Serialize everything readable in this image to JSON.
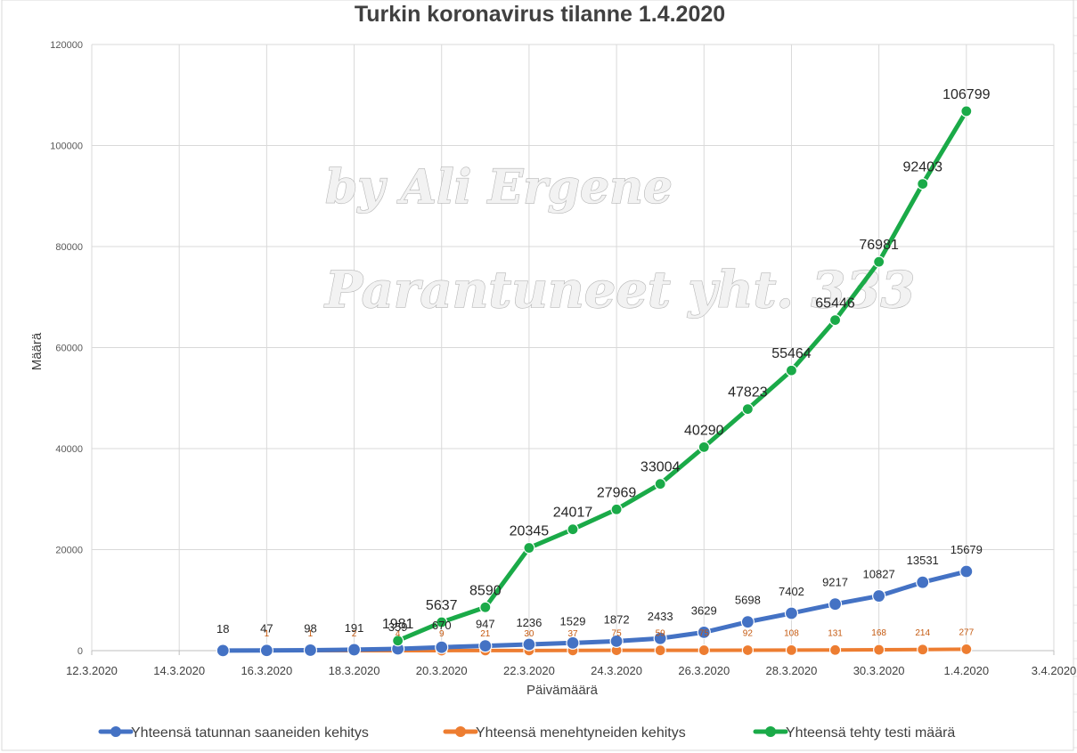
{
  "colors": {
    "confirmed": "#4472c4",
    "deaths": "#ed7d31",
    "tests": "#1aaa48",
    "gridline": "#d9d9d9"
  },
  "watermark": {
    "line1": "by Ali Ergene",
    "line2": "Parantuneet yht. 333"
  },
  "chart_data": {
    "type": "line",
    "title": "Turkin koronavirus tilanne 1.4.2020",
    "xlabel": "Päivämäärä",
    "ylabel": "Määrä",
    "ylim": [
      0,
      120000
    ],
    "yticks": [
      "0",
      "20000",
      "40000",
      "60000",
      "80000",
      "100000",
      "120000"
    ],
    "xticks": [
      "12.3.2020",
      "14.3.2020",
      "16.3.2020",
      "18.3.2020",
      "20.3.2020",
      "22.3.2020",
      "24.3.2020",
      "26.3.2020",
      "28.3.2020",
      "30.3.2020",
      "1.4.2020",
      "3.4.2020"
    ],
    "xlim": [
      "12.3.2020",
      "3.4.2020"
    ],
    "grid": true,
    "legend_position": "bottom",
    "series": [
      {
        "name": "Yhteensä tatunnan saaneiden kehitys",
        "color": "#4472c4",
        "x": [
          "15.3.2020",
          "16.3.2020",
          "17.3.2020",
          "18.3.2020",
          "19.3.2020",
          "20.3.2020",
          "21.3.2020",
          "22.3.2020",
          "23.3.2020",
          "24.3.2020",
          "25.3.2020",
          "26.3.2020",
          "27.3.2020",
          "28.3.2020",
          "29.3.2020",
          "30.3.2020",
          "31.3.2020",
          "1.4.2020"
        ],
        "values": [
          18,
          47,
          98,
          191,
          359,
          670,
          947,
          1236,
          1529,
          1872,
          2433,
          3629,
          5698,
          7402,
          9217,
          10827,
          13531,
          15679
        ],
        "labels": [
          "18",
          "47",
          "98",
          "191",
          "359",
          "670",
          "947",
          "1236",
          "1529",
          "1872",
          "2433",
          "3629",
          "5698",
          "7402",
          "9217",
          "10827",
          "13531",
          "15679"
        ]
      },
      {
        "name": "Yhteensä menehtyneiden kehitys",
        "color": "#ed7d31",
        "x": [
          "16.3.2020",
          "17.3.2020",
          "18.3.2020",
          "19.3.2020",
          "20.3.2020",
          "21.3.2020",
          "22.3.2020",
          "23.3.2020",
          "24.3.2020",
          "25.3.2020",
          "26.3.2020",
          "27.3.2020",
          "28.3.2020",
          "29.3.2020",
          "30.3.2020",
          "31.3.2020",
          "1.4.2020"
        ],
        "values": [
          1,
          1,
          2,
          4,
          9,
          21,
          30,
          37,
          75,
          59,
          75,
          92,
          108,
          131,
          168,
          214,
          277
        ],
        "labels": [
          "1",
          "1",
          "2",
          "4",
          "9",
          "21",
          "30",
          "37",
          "75",
          "59",
          "75",
          "92",
          "108",
          "131",
          "168",
          "214",
          "277"
        ]
      },
      {
        "name": "Yhteensä tehty testi määrä",
        "color": "#1aaa48",
        "x": [
          "19.3.2020",
          "20.3.2020",
          "21.3.2020",
          "22.3.2020",
          "23.3.2020",
          "24.3.2020",
          "25.3.2020",
          "26.3.2020",
          "27.3.2020",
          "28.3.2020",
          "29.3.2020",
          "30.3.2020",
          "31.3.2020",
          "1.4.2020"
        ],
        "values": [
          1981,
          5637,
          8590,
          20345,
          24017,
          27969,
          33004,
          40290,
          47823,
          55464,
          65446,
          76981,
          92403,
          106799
        ],
        "labels": [
          "1981",
          "5637",
          "8590",
          "20345",
          "24017",
          "27969",
          "33004",
          "40290",
          "47823",
          "55464",
          "65446",
          "76981",
          "92403",
          "106799"
        ]
      }
    ]
  }
}
